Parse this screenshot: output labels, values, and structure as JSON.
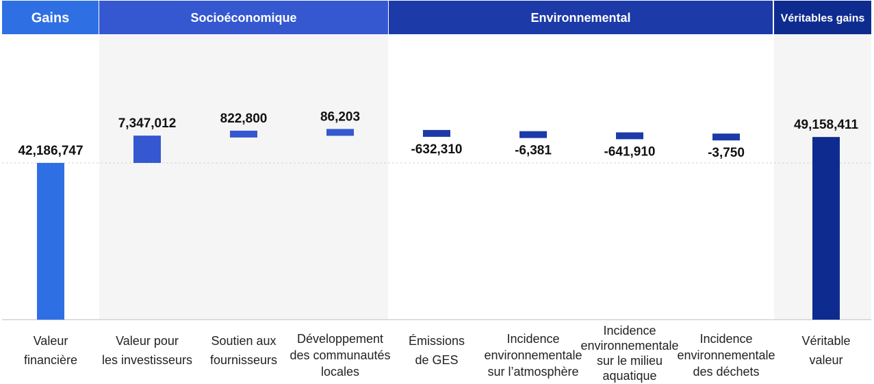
{
  "headers": [
    {
      "label": "Gains",
      "color": "#2f6fe4"
    },
    {
      "label": "Socioéconomique",
      "color": "#3558d1"
    },
    {
      "label": "Environnemental",
      "color": "#1c3aa8"
    },
    {
      "label": "Véritables gains",
      "color": "#0e2b8f"
    }
  ],
  "colors": {
    "financial": "#2f6fe4",
    "socio": "#3558d1",
    "environmental": "#1c3aa8",
    "total": "#0e2b8f",
    "shaded_band": "#f5f5f5"
  },
  "chart_data": {
    "type": "waterfall",
    "title": "",
    "xlabel": "",
    "ylabel": "",
    "categories": [
      [
        "Valeur",
        "financière"
      ],
      [
        "Valeur pour",
        "les investisseurs"
      ],
      [
        "Soutien aux",
        "fournisseurs"
      ],
      [
        "Développement",
        "des communautés",
        "locales"
      ],
      [
        "Émissions",
        "de GES"
      ],
      [
        "Incidence",
        "environnementale",
        "sur l’atmosphère"
      ],
      [
        "Incidence",
        "environnementale",
        "sur le milieu",
        "aquatique"
      ],
      [
        "Incidence",
        "environnementale",
        "des déchets"
      ],
      [
        "Véritable",
        "valeur"
      ]
    ],
    "values": [
      42186747,
      7347012,
      822800,
      86203,
      -632310,
      -6381,
      -641910,
      -3750,
      49158411
    ],
    "value_labels": [
      "42,186,747",
      "7,347,012",
      "822,800",
      "86,203",
      "-632,310",
      "-6,381",
      "-641,910",
      "-3,750",
      "49,158,411"
    ],
    "groups": [
      "financial",
      "socio",
      "socio",
      "socio",
      "environmental",
      "environmental",
      "environmental",
      "environmental",
      "total"
    ],
    "grid": "dashed reference line"
  }
}
